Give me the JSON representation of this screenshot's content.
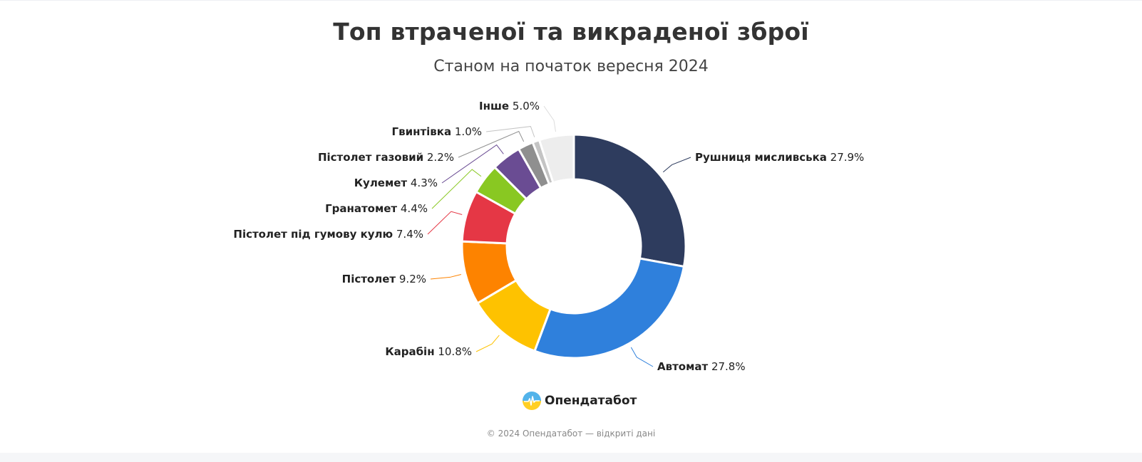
{
  "header": {
    "title": "Топ втраченої та викраденої зброї",
    "subtitle": "Станом на початок вересня 2024"
  },
  "chart_data": {
    "type": "pie",
    "variant": "donut",
    "title": "Топ втраченої та викраденої зброї",
    "subtitle": "Станом на початок вересня 2024",
    "unit": "%",
    "slices": [
      {
        "label": "Рушниця мисливська",
        "value": 27.9,
        "color": "#2e3c5e"
      },
      {
        "label": "Автомат",
        "value": 27.8,
        "color": "#2f80dc"
      },
      {
        "label": "Карабін",
        "value": 10.8,
        "color": "#fec200"
      },
      {
        "label": "Пістолет",
        "value": 9.2,
        "color": "#fd8300"
      },
      {
        "label": "Пістолет під гумову кулю",
        "value": 7.4,
        "color": "#e53745"
      },
      {
        "label": "Гранатомет",
        "value": 4.4,
        "color": "#89c822"
      },
      {
        "label": "Кулемет",
        "value": 4.3,
        "color": "#6a4c93"
      },
      {
        "label": "Пістолет газовий",
        "value": 2.2,
        "color": "#8f8f8f"
      },
      {
        "label": "Гвинтівка",
        "value": 1.0,
        "color": "#c4c4c4"
      },
      {
        "label": "Інше",
        "value": 5.0,
        "color": "#ededed"
      }
    ]
  },
  "footer": {
    "brand": "Опендатабот",
    "logo_icon": "opendatabot-logo-icon",
    "copyright": "© 2024 Опендатабот — відкриті дані"
  }
}
